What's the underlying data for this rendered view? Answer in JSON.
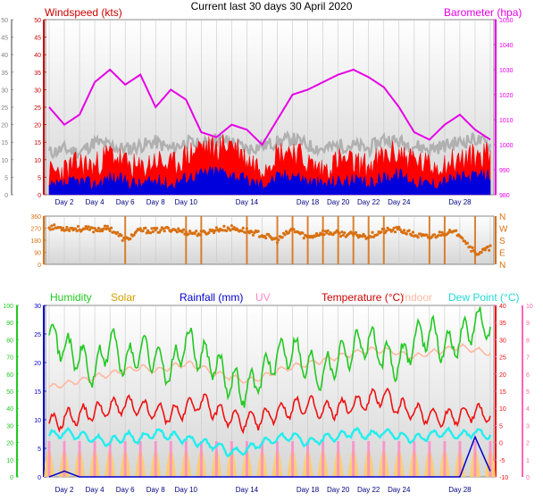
{
  "title": "Current last 30 days 30 April 2020",
  "x_ticks": [
    "Day 2",
    "Day 4",
    "Day 6",
    "Day 8",
    "Day 10",
    "Day 14",
    "Day 18",
    "Day 20",
    "Day 22",
    "Day 24",
    "Day 28"
  ],
  "colors": {
    "windspeed": "#cc0000",
    "gust": "#ff0000",
    "avgwind": "#0000dd",
    "winddir_gray": "#b0b0b0",
    "barometer": "#e600e6",
    "direction": "#d87010",
    "humidity": "#22c922",
    "solar": "#ffcc66",
    "rainfall": "#0000cc",
    "uv": "#ff88c8",
    "temperature": "#ee1111",
    "indoor": "#ffb8a0",
    "dewpoint": "#22eeee"
  },
  "chart_data": [
    {
      "type": "line",
      "panel": "wind",
      "left_label": "Windspeed (kts)",
      "right_label": "Barometer (hpa)",
      "left_ticks": [
        "0",
        "5",
        "10",
        "15",
        "20",
        "25",
        "30",
        "35",
        "40",
        "45",
        "50"
      ],
      "right_ticks": [
        "980",
        "990",
        "1000",
        "1010",
        "1020",
        "1030",
        "1040",
        "1050"
      ],
      "ylim_left": [
        0,
        50
      ],
      "ylim_right": [
        980,
        1050
      ],
      "series": [
        {
          "name": "",
          "key": "gust",
          "values": [
            6,
            7,
            9,
            8,
            12,
            9,
            7,
            10,
            8,
            11,
            14,
            13,
            15,
            10,
            8,
            12,
            13,
            9,
            7,
            10,
            9,
            8,
            11,
            12,
            10,
            8,
            9,
            10,
            11,
            12
          ]
        },
        {
          "name": "",
          "key": "wind",
          "values": [
            2,
            3,
            4,
            3,
            5,
            4,
            3,
            4,
            3,
            5,
            6,
            7,
            6,
            4,
            3,
            5,
            6,
            4,
            3,
            4,
            4,
            3,
            5,
            6,
            4,
            3,
            4,
            5,
            5,
            6
          ]
        },
        {
          "name": "",
          "key": "gray",
          "values": [
            12,
            13,
            12,
            15,
            14,
            13,
            14,
            15,
            13,
            15,
            14,
            16,
            15,
            13,
            14,
            15,
            16,
            14,
            13,
            14,
            14,
            13,
            16,
            15,
            14,
            13,
            14,
            15,
            16,
            14
          ]
        },
        {
          "name": "Barometer",
          "key": "baro",
          "values": [
            1015,
            1008,
            1012,
            1025,
            1030,
            1024,
            1028,
            1015,
            1022,
            1018,
            1005,
            1003,
            1008,
            1006,
            1000,
            1010,
            1020,
            1022,
            1025,
            1028,
            1030,
            1027,
            1023,
            1015,
            1005,
            1002,
            1008,
            1012,
            1006,
            1002
          ]
        }
      ]
    },
    {
      "type": "scatter",
      "panel": "direction",
      "left_ticks": [
        "0",
        "90",
        "180",
        "270",
        "360"
      ],
      "right_ticks": [
        "N",
        "E",
        "S",
        "W",
        "N"
      ],
      "ylim": [
        0,
        360
      ],
      "series": [
        {
          "name": "",
          "key": "dir",
          "values": [
            280,
            270,
            265,
            260,
            270,
            180,
            255,
            250,
            265,
            240,
            230,
            260,
            270,
            250,
            220,
            180,
            260,
            200,
            240,
            230,
            220,
            210,
            250,
            260,
            220,
            200,
            240,
            230,
            80,
            120
          ]
        }
      ]
    },
    {
      "type": "line",
      "panel": "weather",
      "labels": {
        "humidity": "Humidity",
        "solar": "Solar",
        "rainfall": "Rainfall (mm)",
        "uv": "UV",
        "temperature": "Temperature (°C)",
        "indoor": "Indoor",
        "dewpoint": "Dew Point (°C)"
      },
      "left_ticks": [
        "0",
        "10",
        "20",
        "30",
        "40",
        "50",
        "60",
        "70",
        "80",
        "90",
        "100"
      ],
      "left2_ticks": [
        "0",
        "5",
        "10",
        "15",
        "20",
        "25",
        "30"
      ],
      "right_ticks": [
        "-10",
        "-5",
        "0",
        "5",
        "10",
        "15",
        "20",
        "25",
        "30",
        "35",
        "40"
      ],
      "right2_ticks": [
        "0",
        "1",
        "2",
        "3",
        "4",
        "5",
        "6",
        "7",
        "8",
        "9",
        "10"
      ],
      "series": [
        {
          "name": "Humidity",
          "key": "humidity",
          "values": [
            85,
            75,
            70,
            60,
            80,
            65,
            75,
            70,
            60,
            80,
            70,
            65,
            55,
            50,
            60,
            70,
            75,
            65,
            60,
            70,
            75,
            80,
            70,
            65,
            80,
            85,
            75,
            80,
            90,
            88
          ]
        },
        {
          "name": "Temperature (°C)",
          "key": "temp",
          "values": [
            5,
            7,
            8,
            9,
            10,
            11,
            10,
            9,
            8,
            10,
            12,
            9,
            7,
            6,
            7,
            9,
            10,
            11,
            9,
            10,
            11,
            12,
            14,
            10,
            9,
            8,
            7,
            8,
            9,
            8
          ]
        },
        {
          "name": "Dew Point (°C)",
          "key": "dew",
          "values": [
            2,
            3,
            2,
            1,
            0,
            2,
            1,
            3,
            2,
            1,
            0,
            -1,
            -3,
            -2,
            0,
            1,
            2,
            0,
            1,
            2,
            3,
            2,
            3,
            2,
            1,
            2,
            3,
            2,
            3,
            2
          ]
        },
        {
          "name": "Indoor",
          "key": "indoor",
          "values": [
            16,
            17,
            18,
            19,
            20,
            21,
            22,
            21,
            22,
            23,
            22,
            20,
            19,
            18,
            19,
            21,
            22,
            23,
            24,
            25,
            26,
            27,
            27,
            26,
            25,
            26,
            27,
            28,
            27,
            26
          ]
        },
        {
          "name": "Rainfall (mm)",
          "key": "rain",
          "values": [
            0,
            1,
            0,
            0,
            0,
            0,
            0,
            0,
            0,
            0,
            0,
            0,
            0,
            0,
            0,
            0,
            0,
            0,
            0,
            0,
            0,
            0,
            0,
            0,
            0,
            0,
            0,
            0,
            7,
            1
          ]
        }
      ]
    }
  ]
}
